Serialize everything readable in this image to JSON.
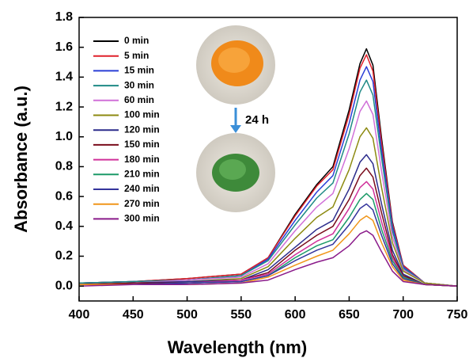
{
  "chart_data": {
    "type": "line",
    "xlabel": "Wavelength (nm)",
    "ylabel": "Absorbance (a.u.)",
    "annotation": "24 h",
    "x": [
      400,
      450,
      500,
      550,
      575,
      600,
      620,
      635,
      650,
      660,
      666,
      672,
      680,
      690,
      700,
      720,
      750
    ],
    "xlim": [
      400,
      750
    ],
    "xticks": [
      400,
      450,
      500,
      550,
      600,
      650,
      700,
      750
    ],
    "ylim": [
      -0.1,
      1.8
    ],
    "yticks": [
      {
        "value": 0,
        "label": "0.0"
      },
      {
        "value": 0.2,
        "label": "0.2"
      },
      {
        "value": 0.4,
        "label": "0.4"
      },
      {
        "value": 0.6,
        "label": "0.6"
      },
      {
        "value": 0.8,
        "label": "0.8"
      },
      {
        "value": 1.0,
        "label": "1.0"
      },
      {
        "value": 1.2,
        "label": "1.2"
      },
      {
        "value": 1.4,
        "label": "1.4"
      },
      {
        "value": 1.6,
        "label": "1.6"
      },
      {
        "value": 1.8,
        "label": "1.8"
      }
    ],
    "series": [
      {
        "name": "0 min",
        "color": "#000000",
        "values": [
          0.02,
          0.03,
          0.05,
          0.08,
          0.19,
          0.48,
          0.68,
          0.8,
          1.18,
          1.49,
          1.59,
          1.48,
          0.99,
          0.43,
          0.14,
          0.02,
          0.0
        ]
      },
      {
        "name": "5 min",
        "color": "#e0202a",
        "values": [
          0.02,
          0.03,
          0.05,
          0.08,
          0.19,
          0.47,
          0.67,
          0.78,
          1.15,
          1.46,
          1.55,
          1.44,
          0.96,
          0.42,
          0.14,
          0.02,
          0.0
        ]
      },
      {
        "name": "15 min",
        "color": "#2a3fd6",
        "values": [
          0.02,
          0.03,
          0.04,
          0.07,
          0.18,
          0.44,
          0.63,
          0.74,
          1.09,
          1.38,
          1.47,
          1.37,
          0.91,
          0.4,
          0.13,
          0.02,
          0.0
        ]
      },
      {
        "name": "30 min",
        "color": "#1f8a86",
        "values": [
          0.02,
          0.03,
          0.04,
          0.07,
          0.17,
          0.41,
          0.59,
          0.69,
          1.02,
          1.3,
          1.38,
          1.28,
          0.86,
          0.37,
          0.12,
          0.02,
          0.0
        ]
      },
      {
        "name": "60 min",
        "color": "#d070d8",
        "values": [
          0.01,
          0.02,
          0.04,
          0.06,
          0.15,
          0.37,
          0.53,
          0.62,
          0.92,
          1.17,
          1.24,
          1.15,
          0.77,
          0.33,
          0.11,
          0.02,
          0.0
        ]
      },
      {
        "name": "100 min",
        "color": "#8c8a10",
        "values": [
          0.01,
          0.02,
          0.03,
          0.05,
          0.13,
          0.32,
          0.46,
          0.53,
          0.78,
          1.0,
          1.06,
          0.99,
          0.66,
          0.29,
          0.1,
          0.02,
          0.0
        ]
      },
      {
        "name": "120 min",
        "color": "#2c2c8c",
        "values": [
          0.01,
          0.02,
          0.03,
          0.04,
          0.11,
          0.26,
          0.38,
          0.44,
          0.65,
          0.83,
          0.88,
          0.82,
          0.55,
          0.24,
          0.08,
          0.01,
          0.0
        ]
      },
      {
        "name": "150 min",
        "color": "#7a0c1c",
        "values": [
          0.01,
          0.02,
          0.02,
          0.04,
          0.09,
          0.24,
          0.34,
          0.4,
          0.58,
          0.74,
          0.79,
          0.73,
          0.49,
          0.21,
          0.07,
          0.01,
          0.0
        ]
      },
      {
        "name": "180 min",
        "color": "#d0309a",
        "values": [
          0.01,
          0.01,
          0.02,
          0.04,
          0.08,
          0.21,
          0.3,
          0.35,
          0.52,
          0.66,
          0.7,
          0.65,
          0.43,
          0.19,
          0.06,
          0.01,
          0.0
        ]
      },
      {
        "name": "210 min",
        "color": "#1c9a68",
        "values": [
          0.01,
          0.01,
          0.02,
          0.03,
          0.07,
          0.19,
          0.27,
          0.31,
          0.46,
          0.58,
          0.62,
          0.58,
          0.38,
          0.17,
          0.06,
          0.01,
          0.0
        ]
      },
      {
        "name": "240 min",
        "color": "#34349c",
        "values": [
          0.01,
          0.01,
          0.02,
          0.03,
          0.07,
          0.17,
          0.24,
          0.28,
          0.41,
          0.52,
          0.55,
          0.51,
          0.34,
          0.15,
          0.05,
          0.01,
          0.0
        ]
      },
      {
        "name": "270 min",
        "color": "#f0961a",
        "values": [
          0.01,
          0.01,
          0.01,
          0.02,
          0.06,
          0.14,
          0.2,
          0.24,
          0.35,
          0.44,
          0.47,
          0.44,
          0.29,
          0.13,
          0.04,
          0.01,
          0.0
        ]
      },
      {
        "name": "300 min",
        "color": "#8a1a8a",
        "values": [
          0.0,
          0.01,
          0.01,
          0.02,
          0.04,
          0.11,
          0.16,
          0.19,
          0.27,
          0.35,
          0.37,
          0.34,
          0.23,
          0.1,
          0.03,
          0.01,
          0.0
        ]
      }
    ]
  }
}
